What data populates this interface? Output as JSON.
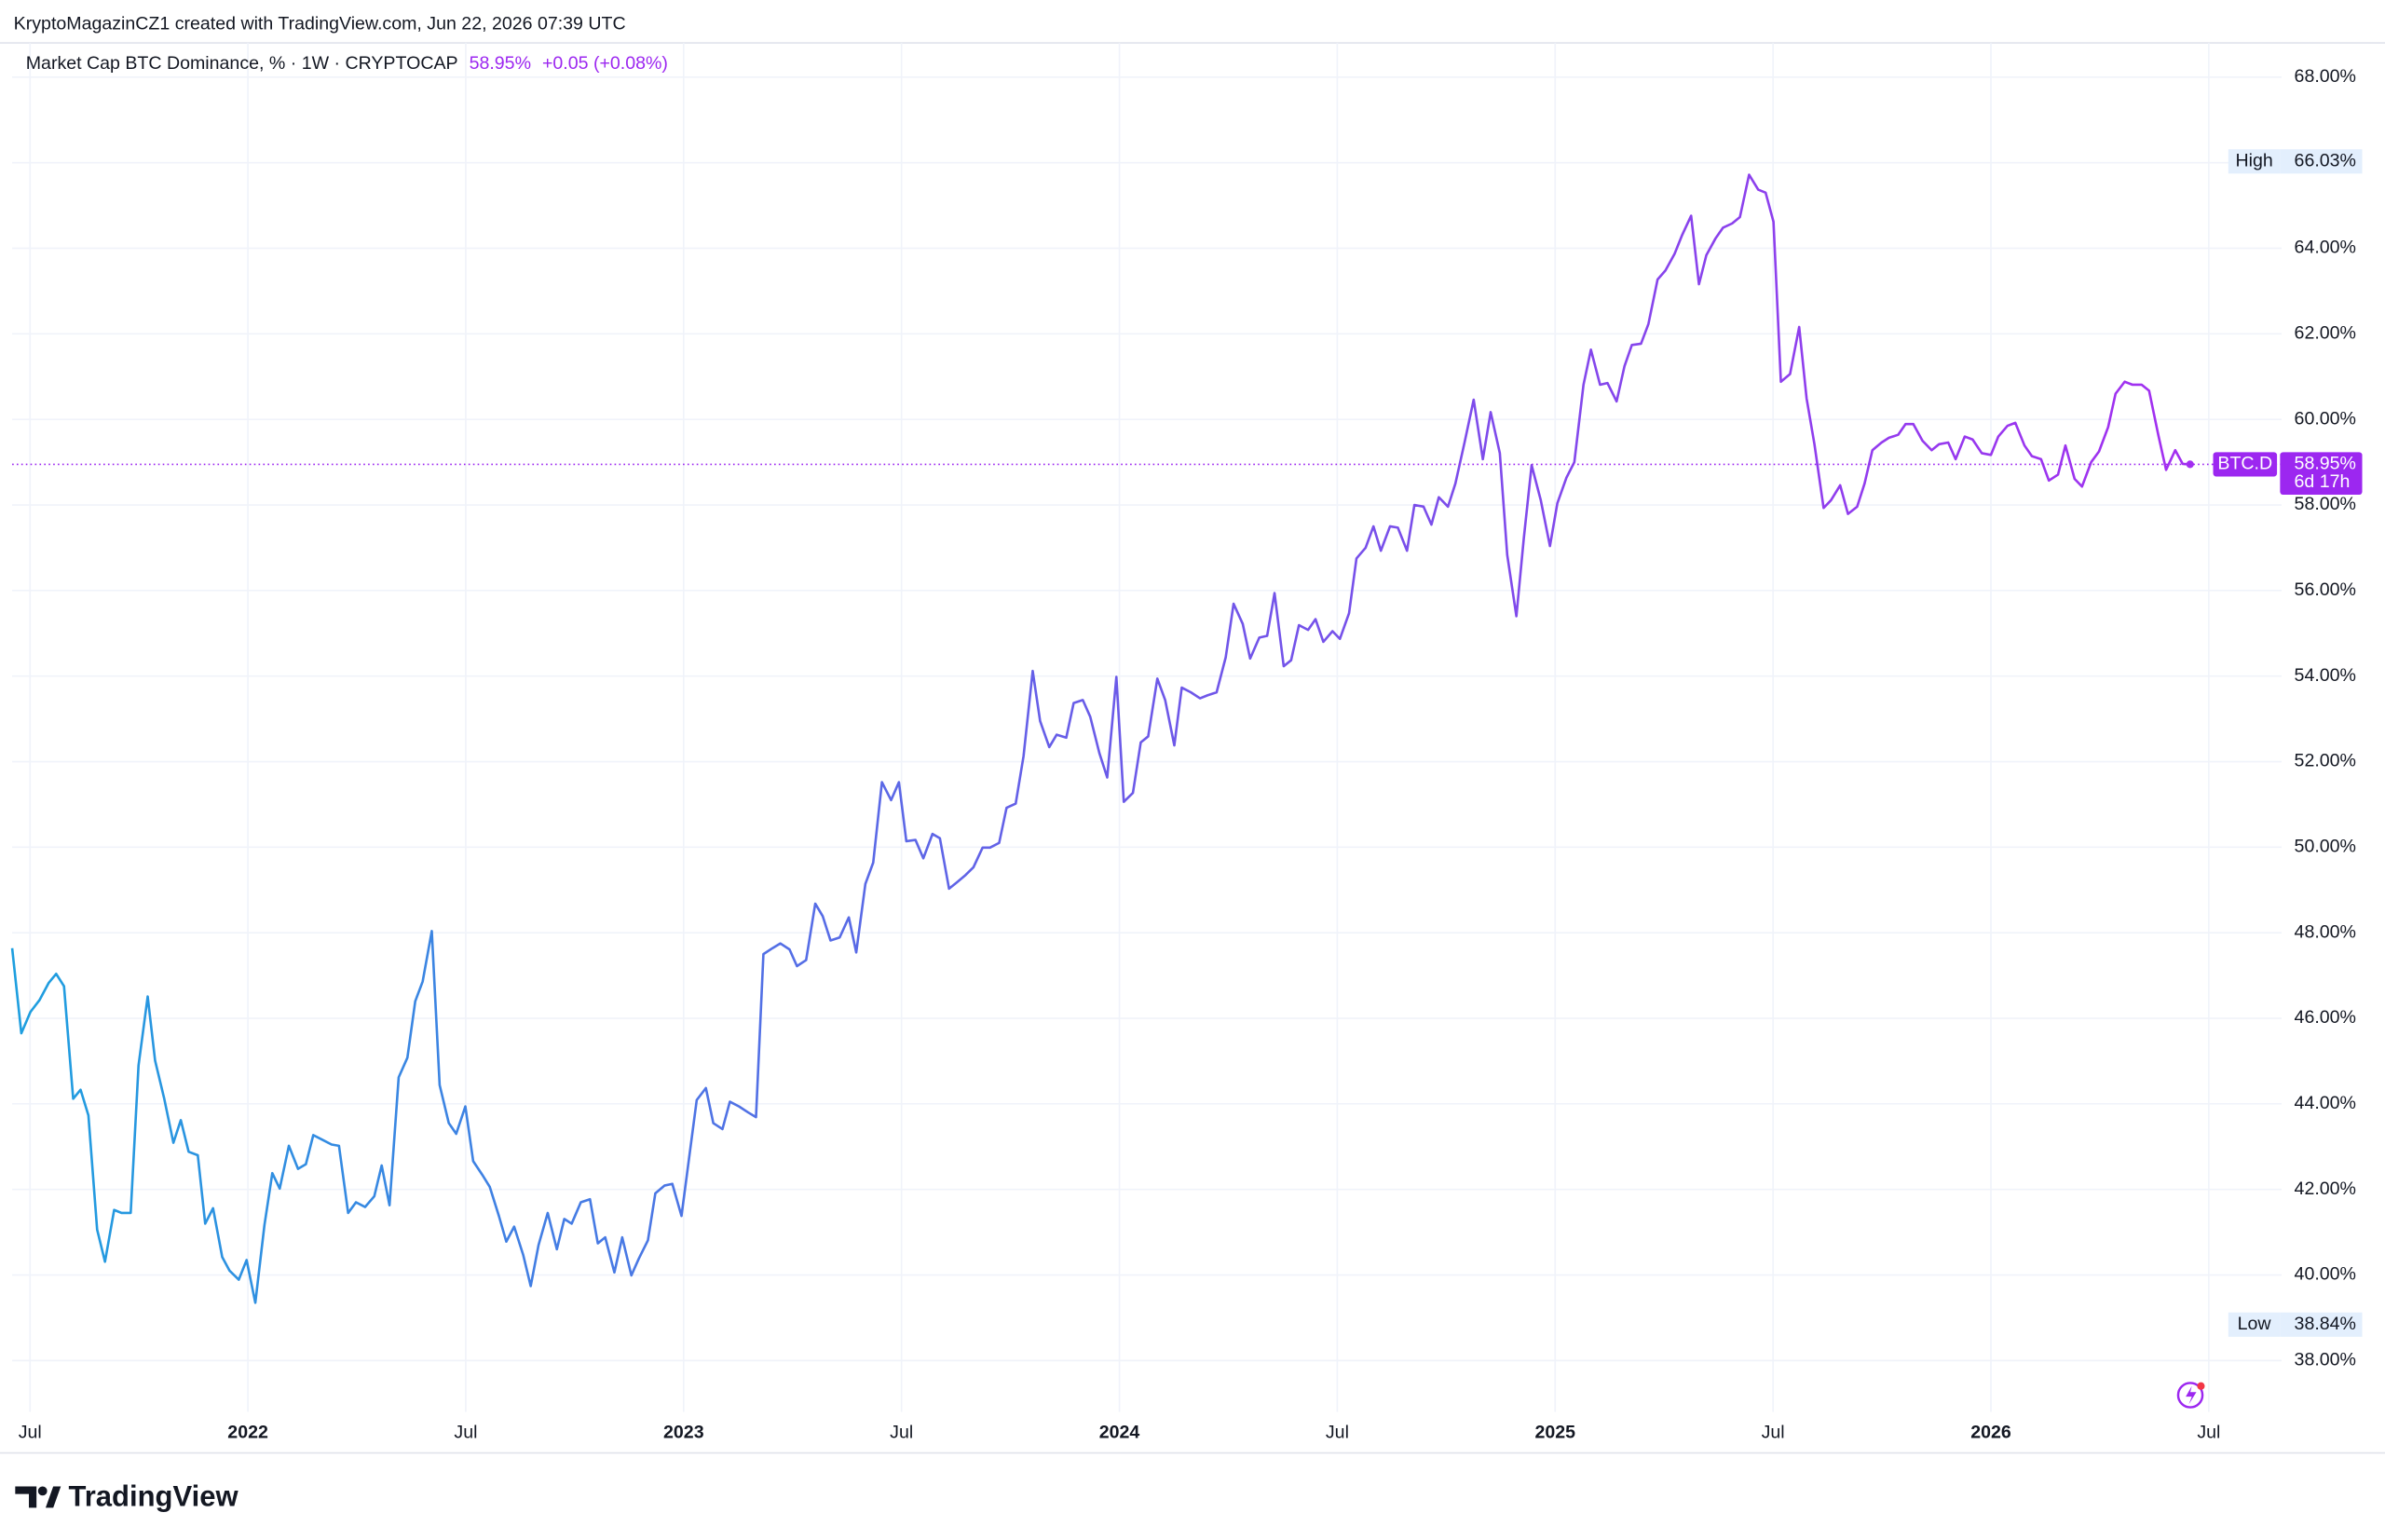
{
  "attribution": "KryptoMagazinCZ1 created with TradingView.com, Jun 22, 2026 07:39 UTC",
  "brand": "TradingView",
  "chart_data": {
    "type": "line",
    "legend": {
      "text": "Market Cap BTC Dominance, % · 1W · CRYPTOCAP",
      "last": "58.95%",
      "change": "+0.05 (+0.08%)",
      "color": "#9c27f0"
    },
    "xlim": [
      2021.459,
      2026.667
    ],
    "ylim": [
      36.8,
      68.8
    ],
    "grid": true,
    "xticks": [
      {
        "value": 2021.5,
        "label": "Jul"
      },
      2022,
      {
        "value": 2022.5,
        "label": "Jul"
      },
      2023,
      {
        "value": 2023.5,
        "label": "Jul"
      },
      2024,
      {
        "value": 2024.5,
        "label": "Jul"
      },
      2025,
      {
        "value": 2025.5,
        "label": "Jul"
      },
      2026,
      {
        "value": 2026.5,
        "label": "Jul"
      }
    ],
    "yticks": [
      {
        "value": 38,
        "label": "38.00%"
      },
      {
        "value": 40,
        "label": "40.00%"
      },
      {
        "value": 42,
        "label": "42.00%"
      },
      {
        "value": 44,
        "label": "44.00%"
      },
      {
        "value": 46,
        "label": "46.00%"
      },
      {
        "value": 48,
        "label": "48.00%"
      },
      {
        "value": 50,
        "label": "50.00%"
      },
      {
        "value": 52,
        "label": "52.00%"
      },
      {
        "value": 54,
        "label": "54.00%"
      },
      {
        "value": 56,
        "label": "56.00%"
      },
      {
        "value": 58,
        "label": "58.00%"
      },
      {
        "value": 60,
        "label": "60.00%"
      },
      {
        "value": 62,
        "label": "62.00%"
      },
      {
        "value": 64,
        "label": "64.00%"
      },
      {
        "value": 66,
        "label": "66.00%"
      },
      {
        "value": 68,
        "label": "68.00%"
      }
    ],
    "series": [
      {
        "gradient": [
          "#1e9fdf",
          "#6a5be8",
          "#a32ff0"
        ],
        "x": [
          2021.459,
          2021.48,
          2021.501,
          2021.522,
          2021.543,
          2021.56,
          2021.578,
          2021.599,
          2021.616,
          2021.634,
          2021.654,
          2021.672,
          2021.693,
          2021.71,
          2021.731,
          2021.749,
          2021.77,
          2021.787,
          2021.808,
          2021.829,
          2021.846,
          2021.864,
          2021.885,
          2021.902,
          2021.92,
          2021.941,
          2021.958,
          2021.979,
          2021.997,
          2022.017,
          2022.038,
          2022.056,
          2022.073,
          2022.094,
          2022.115,
          2022.133,
          2022.15,
          2022.171,
          2022.192,
          2022.209,
          2022.23,
          2022.248,
          2022.269,
          2022.29,
          2022.307,
          2022.325,
          2022.346,
          2022.366,
          2022.384,
          2022.401,
          2022.422,
          2022.44,
          2022.461,
          2022.478,
          2022.499,
          2022.517,
          2022.538,
          2022.555,
          2022.576,
          2022.593,
          2022.611,
          2022.632,
          2022.649,
          2022.667,
          2022.688,
          2022.709,
          2022.726,
          2022.743,
          2022.764,
          2022.785,
          2022.803,
          2022.82,
          2022.841,
          2022.859,
          2022.88,
          2022.897,
          2022.918,
          2022.935,
          2022.956,
          2022.974,
          2022.995,
          2023.012,
          2023.03,
          2023.051,
          2023.068,
          2023.089,
          2023.106,
          2023.127,
          2023.148,
          2023.166,
          2023.183,
          2023.204,
          2023.222,
          2023.243,
          2023.26,
          2023.281,
          2023.302,
          2023.319,
          2023.337,
          2023.358,
          2023.379,
          2023.396,
          2023.417,
          2023.435,
          2023.455,
          2023.476,
          2023.494,
          2023.511,
          2023.532,
          2023.55,
          2023.571,
          2023.588,
          2023.609,
          2023.626,
          2023.647,
          2023.665,
          2023.686,
          2023.703,
          2023.724,
          2023.741,
          2023.762,
          2023.78,
          2023.801,
          2023.818,
          2023.839,
          2023.856,
          2023.878,
          2023.895,
          2023.916,
          2023.933,
          2023.954,
          2023.972,
          2023.993,
          2024.01,
          2024.031,
          2024.049,
          2024.066,
          2024.087,
          2024.105,
          2024.126,
          2024.143,
          2024.164,
          2024.185,
          2024.202,
          2024.223,
          2024.244,
          2024.262,
          2024.283,
          2024.3,
          2024.321,
          2024.339,
          2024.356,
          2024.377,
          2024.394,
          2024.412,
          2024.433,
          2024.45,
          2024.468,
          2024.489,
          2024.506,
          2024.527,
          2024.544,
          2024.565,
          2024.583,
          2024.6,
          2024.621,
          2024.639,
          2024.66,
          2024.677,
          2024.698,
          2024.716,
          2024.733,
          2024.754,
          2024.771,
          2024.792,
          2024.813,
          2024.834,
          2024.852,
          2024.873,
          2024.89,
          2024.911,
          2024.928,
          2024.946,
          2024.967,
          2024.988,
          2025.005,
          2025.026,
          2025.044,
          2025.065,
          2025.082,
          2025.103,
          2025.12,
          2025.141,
          2025.159,
          2025.176,
          2025.197,
          2025.214,
          2025.235,
          2025.253,
          2025.274,
          2025.291,
          2025.312,
          2025.33,
          2025.347,
          2025.368,
          2025.385,
          2025.406,
          2025.424,
          2025.445,
          2025.466,
          2025.483,
          2025.501,
          2025.518,
          2025.539,
          2025.56,
          2025.577,
          2025.595,
          2025.616,
          2025.633,
          2025.654,
          2025.672,
          2025.693,
          2025.71,
          2025.728,
          2025.749,
          2025.766,
          2025.787,
          2025.804,
          2025.822,
          2025.843,
          2025.864,
          2025.881,
          2025.902,
          2025.919,
          2025.94,
          2025.958,
          2025.979,
          2026.0,
          2026.017,
          2026.038,
          2026.056,
          2026.077,
          2026.094,
          2026.115,
          2026.133,
          2026.154,
          2026.171,
          2026.192,
          2026.209,
          2026.23,
          2026.248,
          2026.269,
          2026.286,
          2026.307,
          2026.325,
          2026.346,
          2026.363,
          2026.384,
          2026.402,
          2026.423,
          2026.44,
          2026.457
        ],
        "values": [
          47.64,
          45.65,
          46.15,
          46.43,
          46.83,
          47.04,
          46.75,
          44.12,
          44.33,
          43.73,
          41.06,
          40.31,
          41.52,
          41.45,
          41.45,
          44.9,
          46.51,
          45.01,
          44.12,
          43.09,
          43.62,
          42.88,
          42.8,
          41.2,
          41.56,
          40.42,
          40.1,
          39.89,
          40.35,
          39.35,
          41.17,
          42.38,
          42.02,
          43.02,
          42.48,
          42.59,
          43.27,
          43.16,
          43.05,
          43.02,
          41.45,
          41.7,
          41.59,
          41.84,
          42.56,
          41.63,
          44.62,
          45.08,
          46.4,
          46.86,
          48.04,
          44.44,
          43.55,
          43.3,
          43.94,
          42.66,
          42.34,
          42.06,
          41.38,
          40.78,
          41.13,
          40.46,
          39.74,
          40.7,
          41.45,
          40.6,
          41.31,
          41.2,
          41.7,
          41.77,
          40.74,
          40.88,
          40.06,
          40.88,
          39.99,
          40.38,
          40.81,
          41.91,
          42.09,
          42.13,
          41.38,
          42.7,
          44.09,
          44.37,
          43.55,
          43.41,
          44.05,
          43.94,
          43.8,
          43.69,
          47.5,
          47.64,
          47.75,
          47.61,
          47.22,
          47.36,
          48.68,
          48.39,
          47.82,
          47.89,
          48.36,
          47.54,
          49.14,
          49.64,
          51.52,
          51.1,
          51.52,
          50.14,
          50.17,
          49.74,
          50.31,
          50.21,
          49.03,
          49.17,
          49.35,
          49.53,
          49.99,
          49.99,
          50.1,
          50.92,
          51.02,
          52.13,
          54.12,
          52.95,
          52.34,
          52.63,
          52.56,
          53.37,
          53.44,
          53.05,
          52.2,
          51.63,
          53.98,
          51.06,
          51.27,
          52.45,
          52.59,
          53.94,
          53.44,
          52.38,
          53.73,
          53.62,
          53.48,
          53.55,
          53.62,
          54.44,
          55.69,
          55.22,
          54.41,
          54.9,
          54.94,
          55.94,
          54.23,
          54.37,
          55.19,
          55.08,
          55.33,
          54.8,
          55.05,
          54.87,
          55.47,
          56.75,
          57.0,
          57.5,
          56.93,
          57.5,
          57.47,
          56.93,
          58.0,
          57.96,
          57.54,
          58.18,
          57.96,
          58.5,
          59.46,
          60.46,
          59.07,
          60.17,
          59.21,
          56.83,
          55.4,
          57.22,
          58.93,
          58.11,
          57.04,
          58.04,
          58.64,
          59.0,
          60.81,
          61.63,
          60.81,
          60.85,
          60.42,
          61.24,
          61.74,
          61.77,
          62.23,
          63.27,
          63.48,
          63.87,
          64.3,
          64.76,
          63.16,
          63.84,
          64.23,
          64.48,
          64.58,
          64.73,
          65.72,
          65.37,
          65.3,
          64.62,
          60.88,
          61.06,
          62.16,
          60.49,
          59.42,
          57.93,
          58.11,
          58.46,
          57.79,
          57.96,
          58.5,
          59.28,
          59.46,
          59.57,
          59.64,
          59.89,
          59.89,
          59.5,
          59.28,
          59.42,
          59.46,
          59.07,
          59.6,
          59.53,
          59.21,
          59.17,
          59.6,
          59.85,
          59.92,
          59.39,
          59.14,
          59.07,
          58.57,
          58.71,
          59.39,
          58.61,
          58.43,
          59.0,
          59.25,
          59.82,
          60.6,
          60.88,
          60.81,
          60.81,
          60.67,
          59.64,
          58.82,
          59.28,
          58.96,
          58.95
        ]
      }
    ],
    "price_line": {
      "name": "BTC.D",
      "value": 58.95,
      "value_label": "58.95%",
      "countdown": "6d 17h",
      "color": "#9c27f0"
    },
    "annotations": [
      {
        "text": "High",
        "value": 66.03,
        "value_label": "66.03%"
      },
      {
        "text": "Low",
        "value": 38.84,
        "value_label": "38.84%"
      }
    ]
  }
}
